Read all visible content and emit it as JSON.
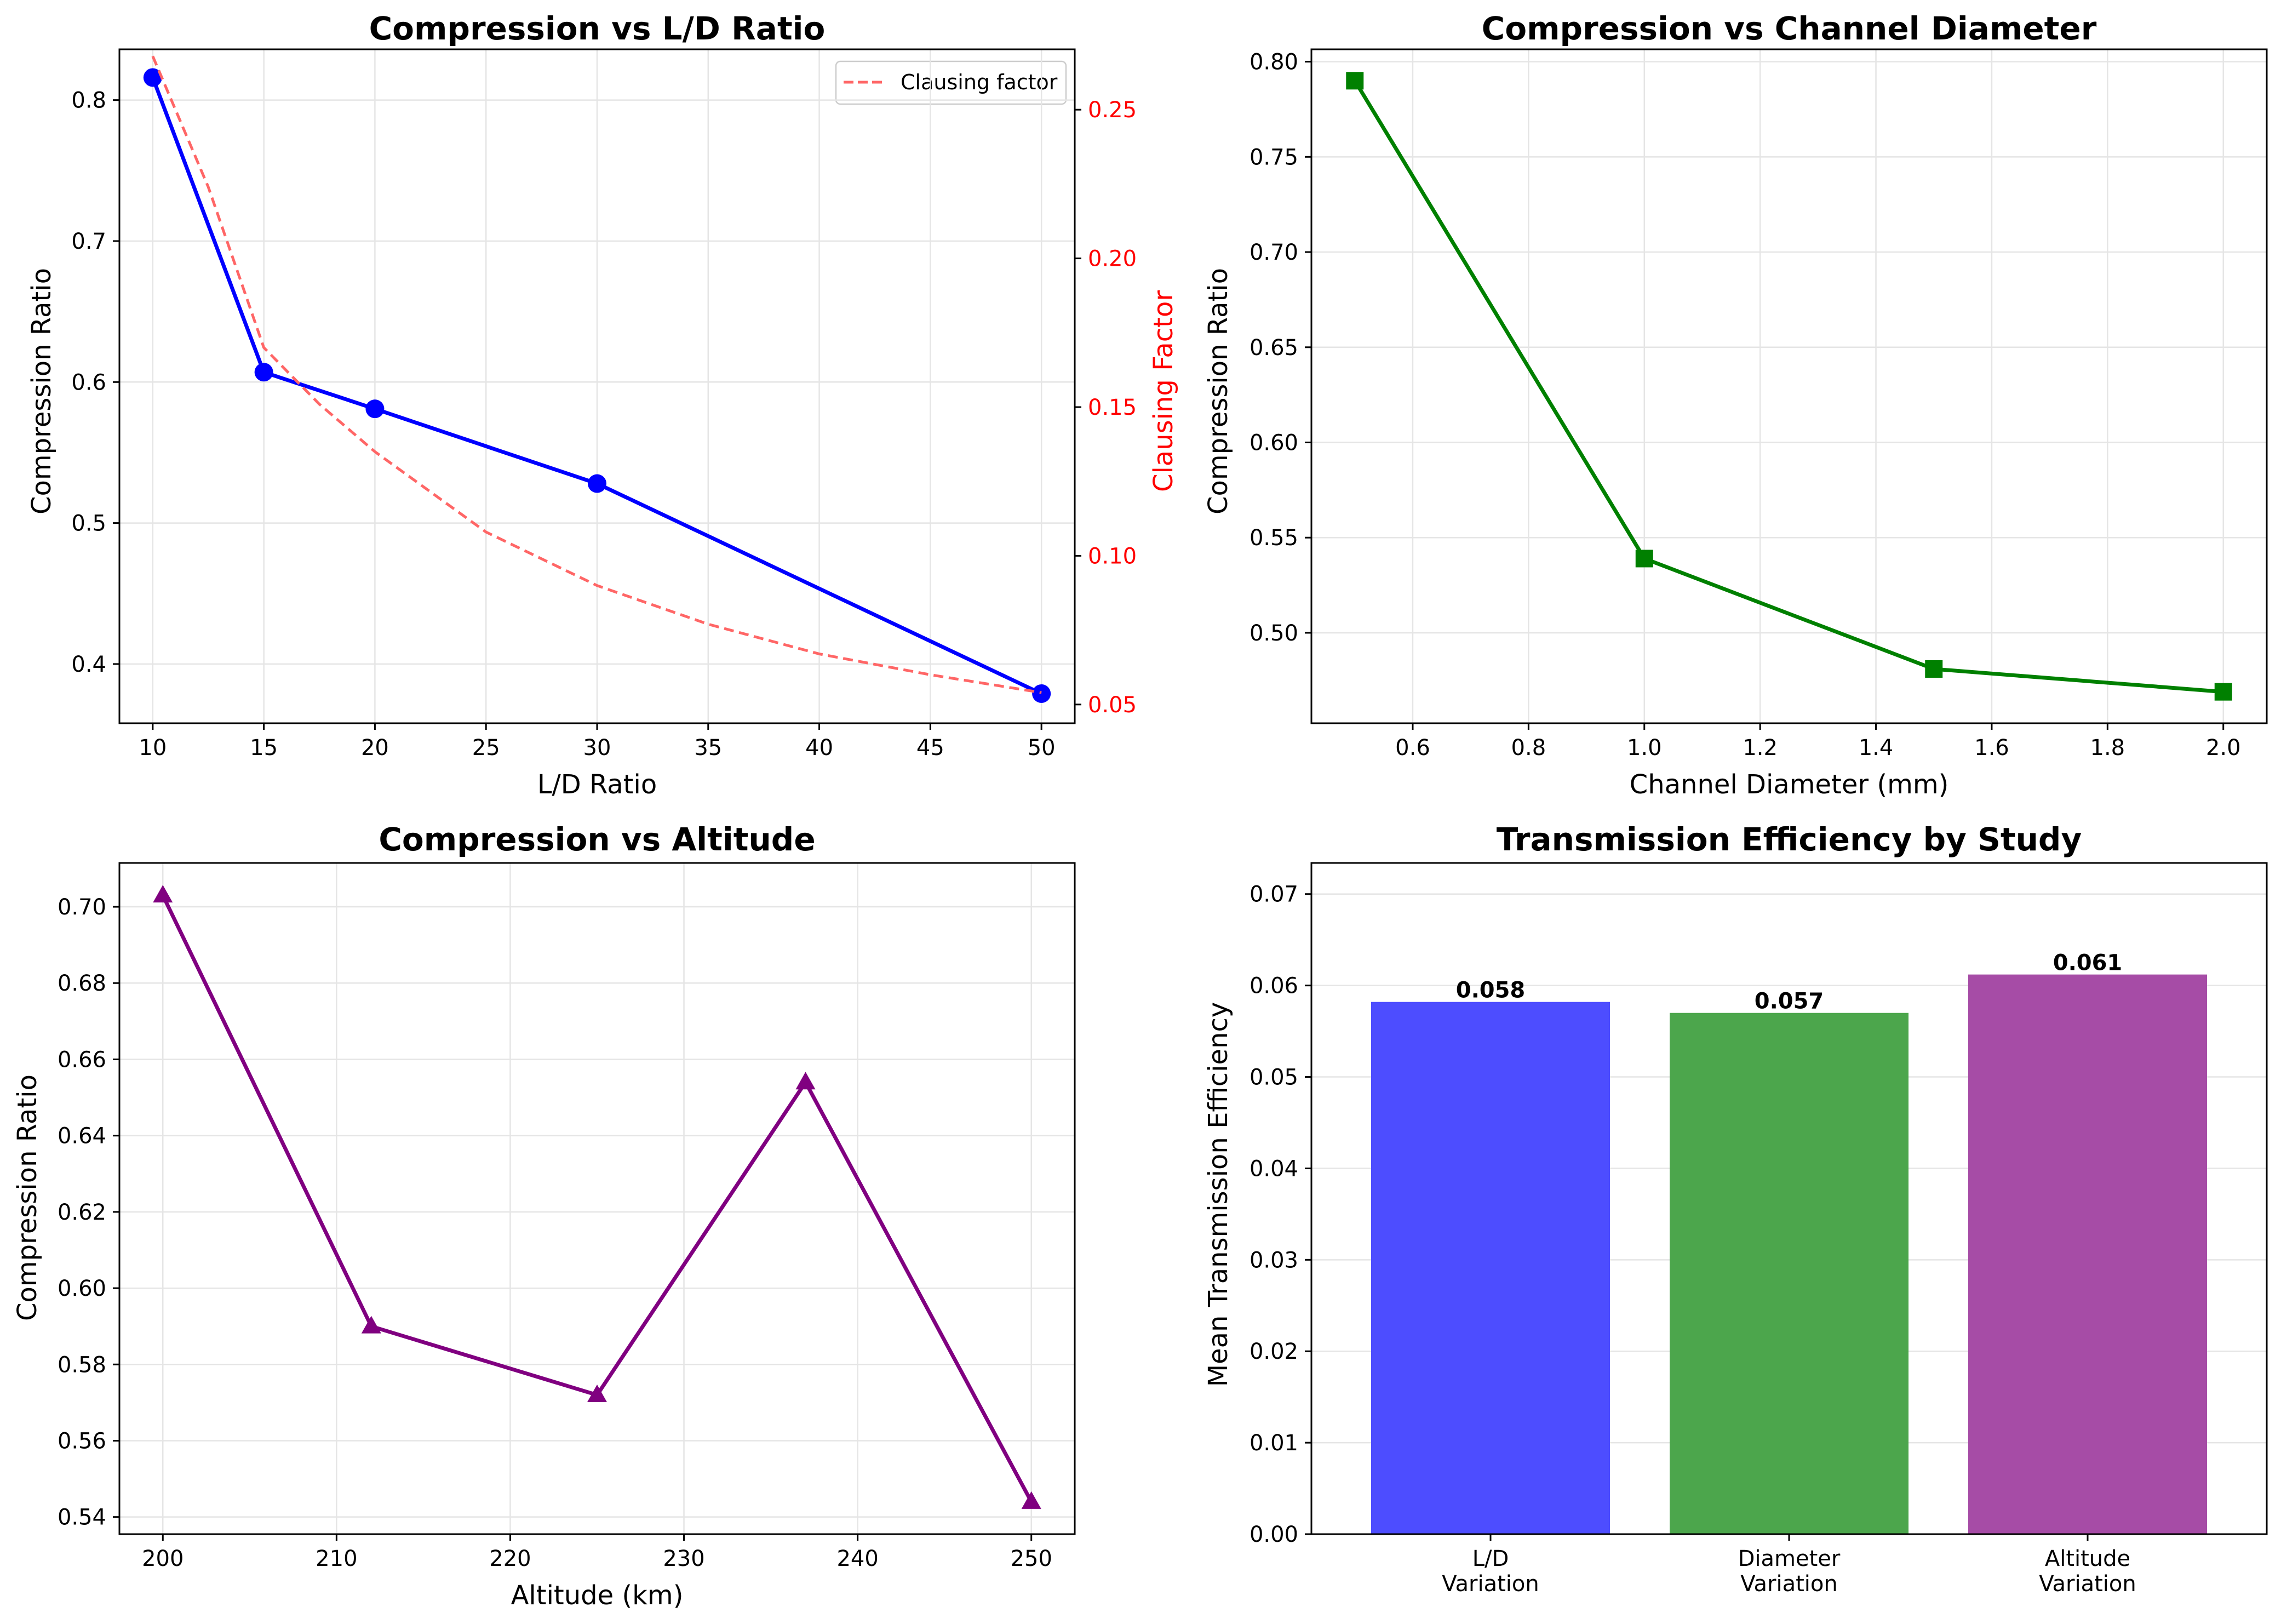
{
  "chart_data": [
    {
      "type": "line",
      "title": "Compression vs L/D Ratio",
      "xlabel": "L/D Ratio",
      "ylabel": "Compression Ratio",
      "y2label": "Clausing Factor",
      "xlim": [
        8.5,
        51.5
      ],
      "ylim": [
        0.358,
        0.836
      ],
      "y2lim": [
        0.0437,
        0.2703
      ],
      "xticks": [
        10,
        15,
        20,
        25,
        30,
        35,
        40,
        45,
        50
      ],
      "yticks": [
        0.4,
        0.5,
        0.6,
        0.7,
        0.8
      ],
      "y2ticks": [
        0.05,
        0.1,
        0.15,
        0.2,
        0.25
      ],
      "grid": true,
      "legend": "top-right",
      "series": [
        {
          "values": [
            {
              "x": 10,
              "y": 0.816
            },
            {
              "x": 15,
              "y": 0.607
            },
            {
              "x": 20,
              "y": 0.581
            },
            {
              "x": 30,
              "y": 0.528
            },
            {
              "x": 50,
              "y": 0.379
            }
          ],
          "color": "#0000ff",
          "marker": "circle",
          "linestyle": "solid",
          "axis": "left"
        },
        {
          "name": "Clausing factor",
          "values": [
            {
              "x": 10,
              "y": 0.268
            },
            {
              "x": 12.5,
              "y": 0.224
            },
            {
              "x": 15,
              "y": 0.17
            },
            {
              "x": 17.5,
              "y": 0.151
            },
            {
              "x": 20,
              "y": 0.135
            },
            {
              "x": 25,
              "y": 0.108
            },
            {
              "x": 30,
              "y": 0.09
            },
            {
              "x": 35,
              "y": 0.077
            },
            {
              "x": 40,
              "y": 0.067
            },
            {
              "x": 45,
              "y": 0.06
            },
            {
              "x": 50,
              "y": 0.054
            }
          ],
          "color": "#ff6666",
          "marker": "none",
          "linestyle": "dashed",
          "axis": "right"
        }
      ]
    },
    {
      "type": "line",
      "title": "Compression vs Channel Diameter",
      "xlabel": "Channel Diameter (mm)",
      "ylabel": "Compression Ratio",
      "xlim": [
        0.425,
        2.075
      ],
      "ylim": [
        0.4525,
        0.8065
      ],
      "xticks": [
        0.6,
        0.8,
        1.0,
        1.2,
        1.4,
        1.6,
        1.8,
        2.0
      ],
      "yticks": [
        0.5,
        0.55,
        0.6,
        0.65,
        0.7,
        0.75,
        0.8
      ],
      "grid": true,
      "series": [
        {
          "values": [
            {
              "x": 0.5,
              "y": 0.79
            },
            {
              "x": 1.0,
              "y": 0.539
            },
            {
              "x": 1.5,
              "y": 0.481
            },
            {
              "x": 2.0,
              "y": 0.469
            }
          ],
          "color": "#008000",
          "marker": "square",
          "linestyle": "solid"
        }
      ]
    },
    {
      "type": "line",
      "title": "Compression vs Altitude",
      "xlabel": "Altitude (km)",
      "ylabel": "Compression Ratio",
      "xlim": [
        197.5,
        252.5
      ],
      "ylim": [
        0.5355,
        0.7115
      ],
      "xticks": [
        200,
        210,
        220,
        230,
        240,
        250
      ],
      "yticks": [
        0.54,
        0.56,
        0.58,
        0.6,
        0.62,
        0.64,
        0.66,
        0.68,
        0.7
      ],
      "grid": true,
      "series": [
        {
          "values": [
            {
              "x": 200,
              "y": 0.703
            },
            {
              "x": 212,
              "y": 0.59
            },
            {
              "x": 225,
              "y": 0.572
            },
            {
              "x": 237,
              "y": 0.654
            },
            {
              "x": 250,
              "y": 0.544
            }
          ],
          "color": "#800080",
          "marker": "triangle",
          "linestyle": "solid"
        }
      ]
    },
    {
      "type": "bar",
      "title": "Transmission Efficiency by Study",
      "xlabel": "",
      "ylabel": "Mean Transmission Efficiency",
      "categories": [
        "L/D\nVariation",
        "Diameter\nVariation",
        "Altitude\nVariation"
      ],
      "values": [
        0.0582,
        0.057,
        0.0612
      ],
      "data_labels": [
        "0.058",
        "0.057",
        "0.061"
      ],
      "colors": [
        "#4d4dff",
        "#4ca64c",
        "#a64ca6"
      ],
      "ylim": [
        0,
        0.0734
      ],
      "yticks": [
        0.0,
        0.01,
        0.02,
        0.03,
        0.04,
        0.05,
        0.06,
        0.07
      ],
      "grid": true
    }
  ]
}
